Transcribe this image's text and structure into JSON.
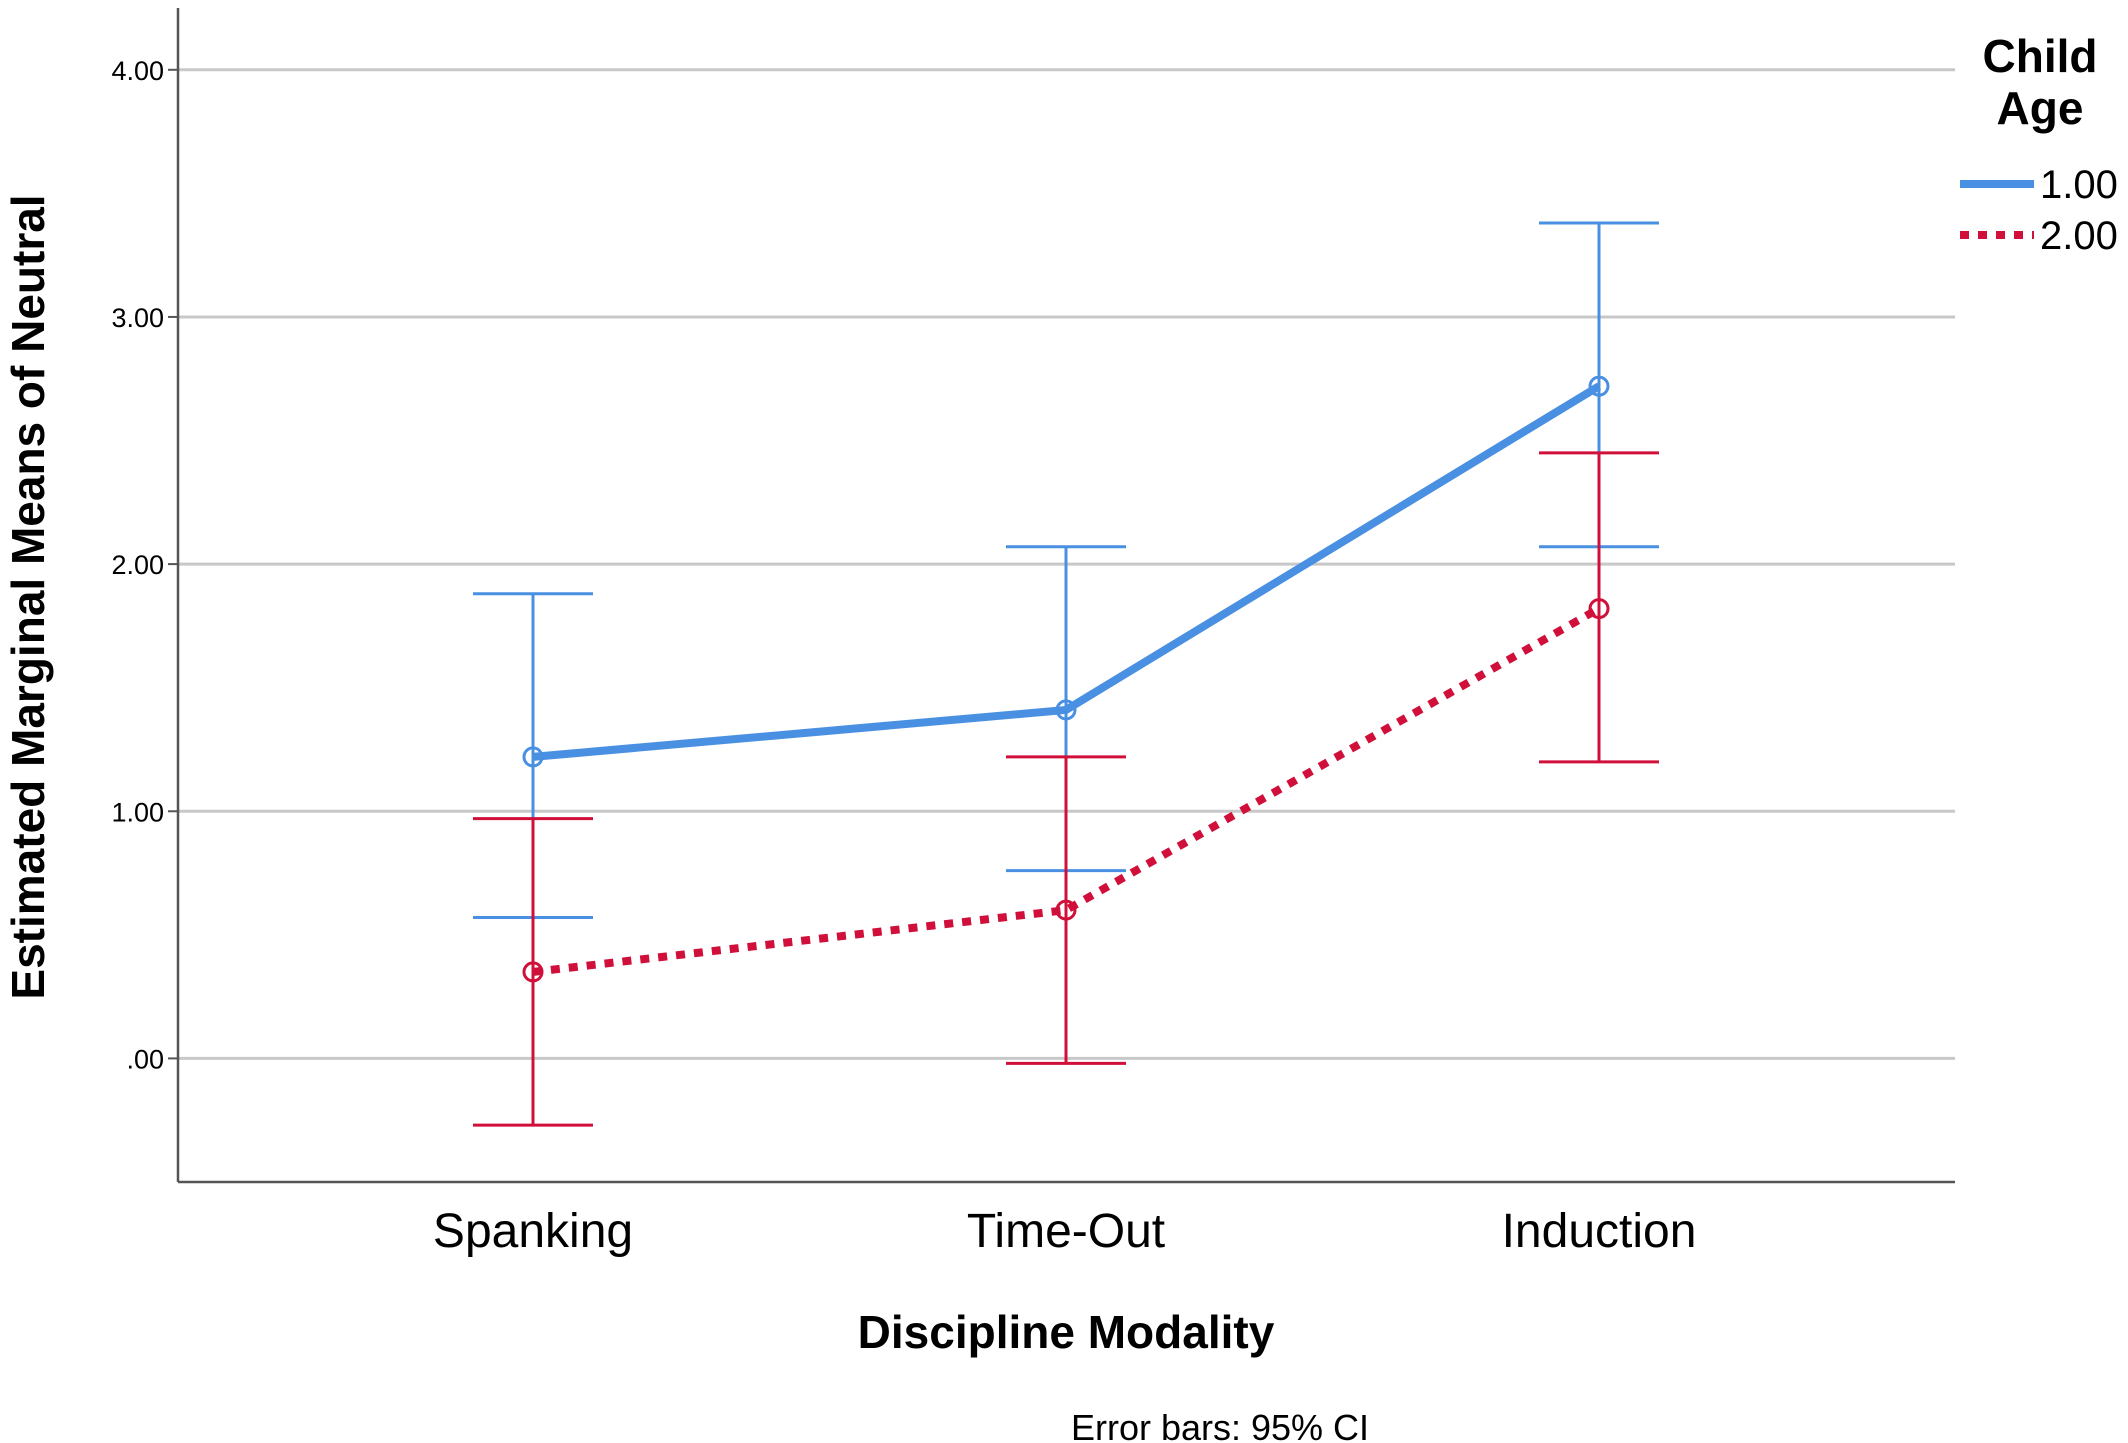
{
  "chart_data": {
    "type": "line",
    "title": "",
    "xlabel": "Discipline Modality",
    "ylabel": "Estimated Marginal Means of Neutral",
    "categories": [
      "Spanking",
      "Time-Out",
      "Induction"
    ],
    "y_tick_labels": [
      "4.00",
      "3.00",
      "2.00",
      "1.00",
      ".00"
    ],
    "y_ticks": [
      4,
      3,
      2,
      1,
      0
    ],
    "ylim": [
      -0.5,
      4.25
    ],
    "grid": true,
    "legend": {
      "title_line1": "Child",
      "title_line2": "Age",
      "placement": "top-right"
    },
    "series": [
      {
        "name": "1.00",
        "color": "#4a90e2",
        "style": "solid",
        "values": [
          1.22,
          1.41,
          2.72
        ],
        "ci_lower": [
          0.57,
          0.76,
          2.07
        ],
        "ci_upper": [
          1.88,
          2.07,
          3.38
        ]
      },
      {
        "name": "2.00",
        "color": "#d0103a",
        "style": "dotted",
        "values": [
          0.35,
          0.6,
          1.82
        ],
        "ci_lower": [
          -0.27,
          -0.02,
          1.2
        ],
        "ci_upper": [
          0.97,
          1.22,
          2.45
        ]
      }
    ],
    "footnote": "Error bars: 95% CI"
  }
}
